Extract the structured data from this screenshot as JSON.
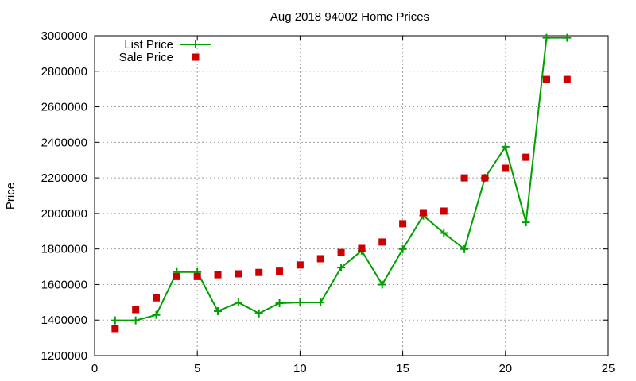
{
  "chart_data": {
    "type": "line",
    "title": "Aug 2018 94002 Home Prices",
    "xlabel": "",
    "ylabel": "Price",
    "xlim": [
      0,
      25
    ],
    "ylim": [
      1200000,
      3000000
    ],
    "x_ticks": [
      0,
      5,
      10,
      15,
      20,
      25
    ],
    "y_ticks": [
      1200000,
      1400000,
      1600000,
      1800000,
      2000000,
      2200000,
      2400000,
      2600000,
      2800000,
      3000000
    ],
    "grid": true,
    "legend_position": "top-left",
    "x": [
      1,
      2,
      3,
      4,
      5,
      6,
      7,
      8,
      9,
      10,
      11,
      12,
      13,
      14,
      15,
      16,
      17,
      18,
      19,
      20,
      21,
      22,
      23
    ],
    "series": [
      {
        "name": "List Price",
        "style": "linespoints",
        "marker": "plus",
        "color": "#00a000",
        "values": [
          1398000,
          1398000,
          1429000,
          1670000,
          1670000,
          1450000,
          1499000,
          1438000,
          1495000,
          1499000,
          1499000,
          1695000,
          1790000,
          1600000,
          1799000,
          1988000,
          1890000,
          1799000,
          2200000,
          2375000,
          1950000,
          2988000,
          2988000
        ]
      },
      {
        "name": "Sale Price",
        "style": "points",
        "marker": "square",
        "color": "#cc0000",
        "values": [
          1352000,
          1459000,
          1525000,
          1645000,
          1645000,
          1655000,
          1660000,
          1668000,
          1675000,
          1710000,
          1745000,
          1780000,
          1803000,
          1839000,
          1942000,
          2004000,
          2013000,
          2200000,
          2200000,
          2254000,
          2316000,
          2754000,
          2754000
        ]
      }
    ]
  },
  "colors": {
    "list_line": "#00a000",
    "sale_marker": "#cc0000",
    "grid": "#a0a0a0",
    "axis": "#000000"
  }
}
